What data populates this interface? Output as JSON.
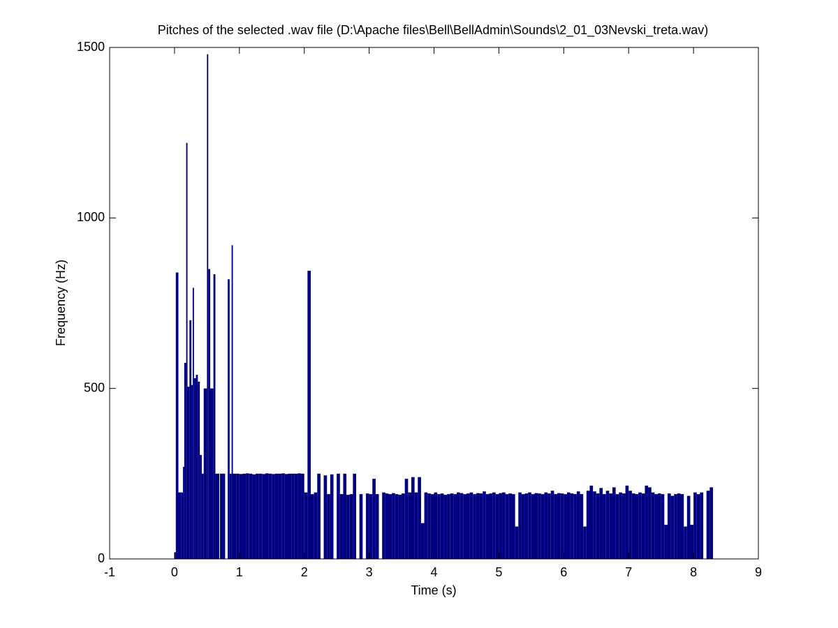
{
  "chart_data": {
    "type": "bar",
    "title": "Pitches of the selected .wav file (D:\\Apache files\\Bell\\BellAdmin\\Sounds\\2_01_03Nevski_treta.wav)",
    "xlabel": "Time (s)",
    "ylabel": "Frequency (Hz)",
    "color": "#000080",
    "xlim": [
      -1,
      9
    ],
    "xticks": [
      -1,
      0,
      1,
      2,
      3,
      4,
      5,
      6,
      7,
      8,
      9
    ],
    "ylim": [
      0,
      1500
    ],
    "yticks": [
      0,
      500,
      1000,
      1500
    ],
    "x": [
      0,
      0.02,
      0.06,
      0.1,
      0.13,
      0.15,
      0.18,
      0.2,
      0.23,
      0.26,
      0.28,
      0.3,
      0.33,
      0.36,
      0.39,
      0.42,
      0.45,
      0.5,
      0.52,
      0.55,
      0.6,
      0.63,
      0.7,
      0.75,
      0.78,
      0.82,
      0.85,
      0.88,
      0.9,
      0.95,
      1.0,
      1.05,
      1.1,
      1.15,
      1.2,
      1.25,
      1.3,
      1.35,
      1.4,
      1.45,
      1.5,
      1.55,
      1.6,
      1.65,
      1.7,
      1.75,
      1.8,
      1.85,
      1.9,
      1.95,
      2.0,
      2.05,
      2.1,
      2.15,
      2.2,
      2.25,
      2.3,
      2.35,
      2.4,
      2.45,
      2.5,
      2.55,
      2.6,
      2.65,
      2.7,
      2.75,
      2.8,
      2.85,
      2.9,
      2.95,
      3.0,
      3.05,
      3.1,
      3.15,
      3.2,
      3.25,
      3.3,
      3.35,
      3.4,
      3.45,
      3.5,
      3.55,
      3.6,
      3.65,
      3.7,
      3.75,
      3.8,
      3.85,
      3.9,
      3.95,
      4.0,
      4.05,
      4.1,
      4.15,
      4.2,
      4.25,
      4.3,
      4.35,
      4.4,
      4.45,
      4.5,
      4.55,
      4.6,
      4.65,
      4.7,
      4.75,
      4.8,
      4.85,
      4.9,
      4.95,
      5.0,
      5.05,
      5.1,
      5.15,
      5.2,
      5.25,
      5.3,
      5.35,
      5.4,
      5.45,
      5.5,
      5.55,
      5.6,
      5.65,
      5.7,
      5.75,
      5.8,
      5.85,
      5.9,
      5.95,
      6.0,
      6.05,
      6.1,
      6.15,
      6.2,
      6.25,
      6.3,
      6.35,
      6.4,
      6.45,
      6.5,
      6.55,
      6.6,
      6.65,
      6.7,
      6.75,
      6.8,
      6.85,
      6.9,
      6.95,
      7.0,
      7.05,
      7.1,
      7.15,
      7.2,
      7.25,
      7.3,
      7.35,
      7.4,
      7.45,
      7.5,
      7.55,
      7.6,
      7.65,
      7.7,
      7.75,
      7.8,
      7.85,
      7.9,
      7.95,
      8.0,
      8.05,
      8.1,
      8.15,
      8.2,
      8.25
    ],
    "values": [
      20,
      840,
      195,
      195,
      270,
      575,
      1220,
      505,
      700,
      510,
      795,
      530,
      540,
      520,
      305,
      250,
      500,
      1480,
      850,
      500,
      835,
      250,
      250,
      250,
      0,
      820,
      250,
      920,
      250,
      250,
      249,
      250,
      251,
      250,
      248,
      250,
      250,
      249,
      251,
      250,
      249,
      250,
      250,
      251,
      249,
      250,
      250,
      250,
      251,
      250,
      195,
      845,
      190,
      195,
      250,
      0,
      245,
      190,
      248,
      0,
      250,
      190,
      250,
      188,
      190,
      250,
      0,
      190,
      0,
      192,
      190,
      235,
      190,
      0,
      195,
      192,
      190,
      193,
      190,
      188,
      192,
      235,
      195,
      240,
      195,
      240,
      105,
      195,
      192,
      190,
      195,
      190,
      192,
      188,
      190,
      192,
      190,
      195,
      193,
      190,
      192,
      195,
      190,
      193,
      192,
      198,
      190,
      192,
      195,
      190,
      193,
      195,
      190,
      192,
      190,
      95,
      195,
      190,
      192,
      195,
      190,
      193,
      192,
      190,
      195,
      192,
      200,
      190,
      193,
      192,
      190,
      195,
      192,
      190,
      198,
      190,
      95,
      200,
      215,
      198,
      192,
      208,
      190,
      200,
      192,
      210,
      190,
      195,
      192,
      215,
      200,
      192,
      190,
      195,
      192,
      215,
      210,
      195,
      190,
      192,
      190,
      100,
      192,
      185,
      190,
      192,
      190,
      95,
      185,
      100,
      195,
      190,
      195,
      0,
      200,
      210
    ]
  }
}
